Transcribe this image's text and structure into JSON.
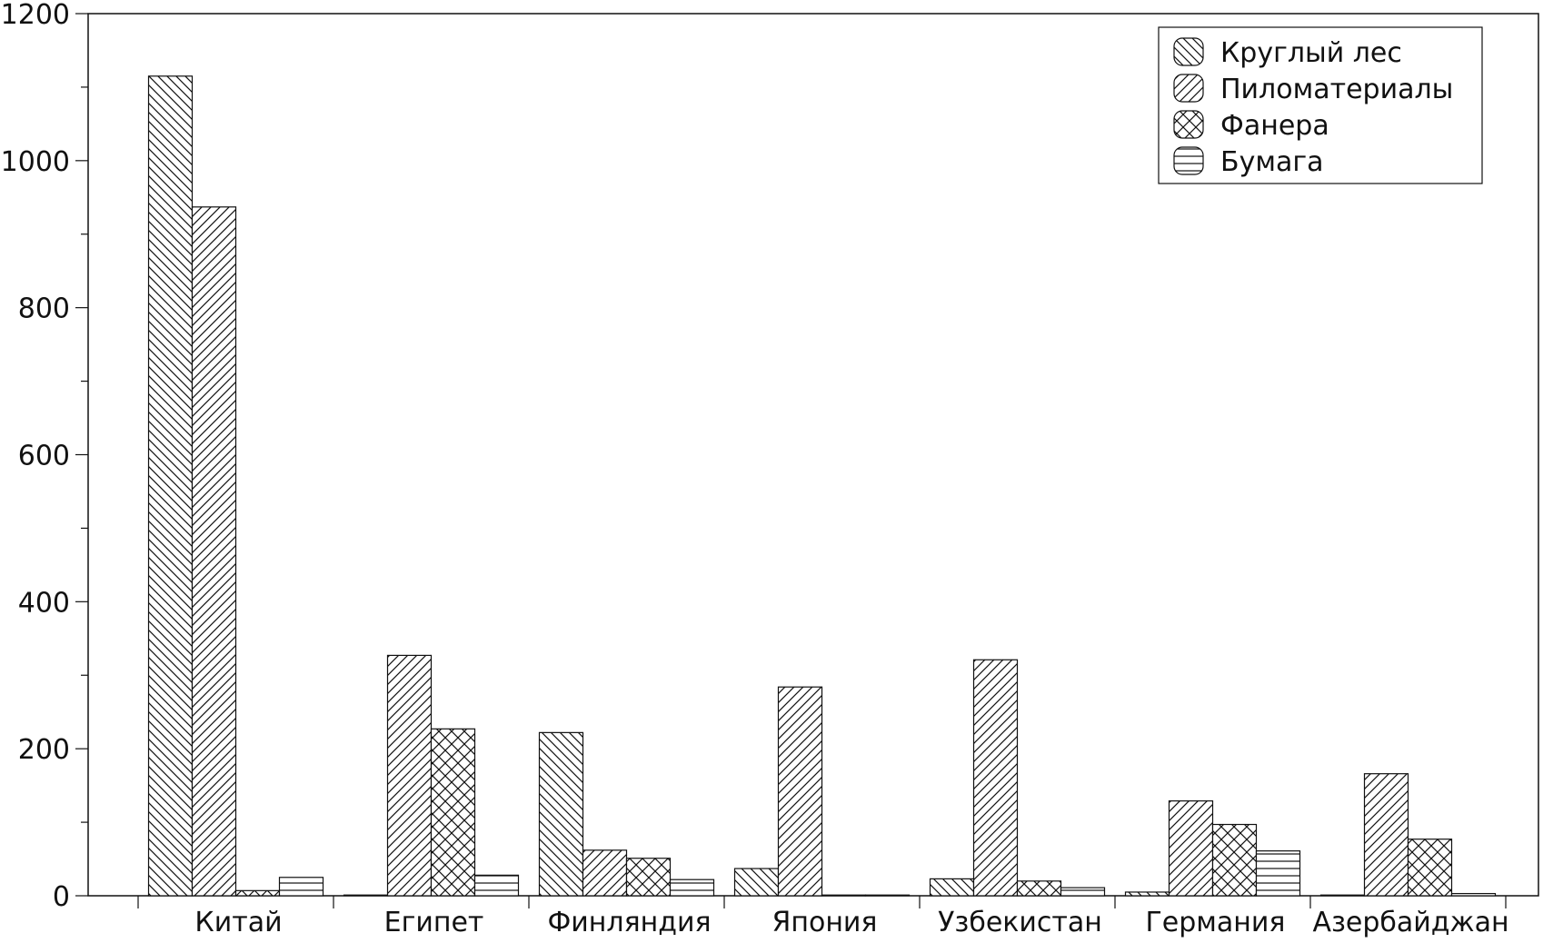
{
  "chart_data": {
    "type": "bar",
    "title": "",
    "xlabel": "",
    "ylabel": "",
    "ylim": [
      0,
      1200
    ],
    "yticks": [
      "0",
      "200",
      "400",
      "600",
      "800",
      "1000",
      "1200"
    ],
    "categories": [
      "Китай",
      "Египет",
      "Финляндия",
      "Япония",
      "Узбекистан",
      "Германия",
      "Азербайджан"
    ],
    "series": [
      {
        "name": "Круглый лес",
        "pattern": "back-diagonal-hatch",
        "values": [
          1115,
          1,
          222,
          37,
          23,
          5,
          1
        ]
      },
      {
        "name": "Пиломатериалы",
        "pattern": "forward-diagonal-hatch",
        "values": [
          937,
          327,
          62,
          284,
          321,
          129,
          166
        ]
      },
      {
        "name": "Фанера",
        "pattern": "cross-hatch",
        "values": [
          7,
          227,
          51,
          0,
          20,
          97,
          77
        ]
      },
      {
        "name": "Бумага",
        "pattern": "horizontal-hatch",
        "values": [
          25,
          28,
          22,
          0,
          11,
          61,
          3
        ]
      }
    ],
    "legend_position": "top-right",
    "grid": false,
    "colors": {
      "stroke": "#111111",
      "fill": "#ffffff"
    }
  }
}
